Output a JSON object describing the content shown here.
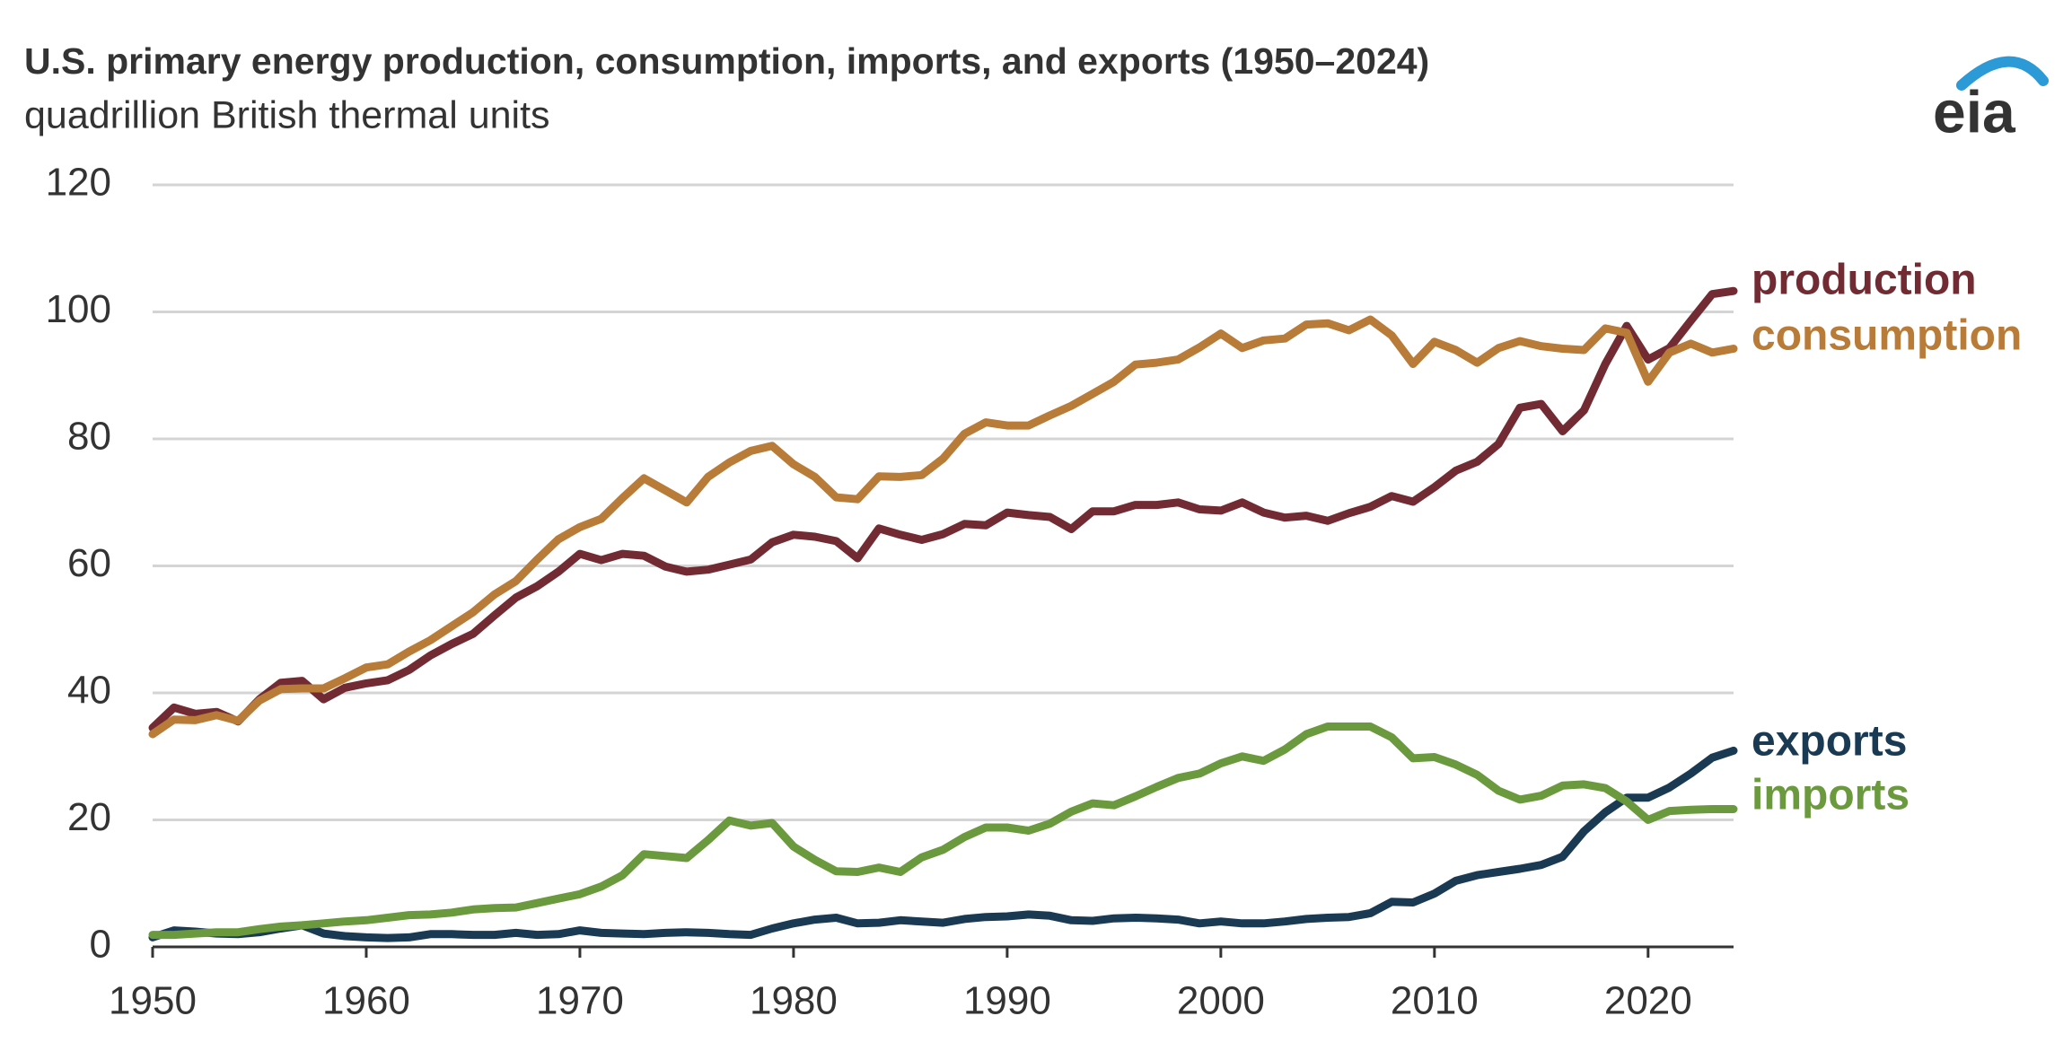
{
  "chart_data": {
    "type": "line",
    "title": "U.S. primary energy production, consumption, imports, and exports (1950–2024)",
    "subtitle": "quadrillion British thermal units",
    "logo": "eia",
    "x": [
      1950,
      1951,
      1952,
      1953,
      1954,
      1955,
      1956,
      1957,
      1958,
      1959,
      1960,
      1961,
      1962,
      1963,
      1964,
      1965,
      1966,
      1967,
      1968,
      1969,
      1970,
      1971,
      1972,
      1973,
      1974,
      1975,
      1976,
      1977,
      1978,
      1979,
      1980,
      1981,
      1982,
      1983,
      1984,
      1985,
      1986,
      1987,
      1988,
      1989,
      1990,
      1991,
      1992,
      1993,
      1994,
      1995,
      1996,
      1997,
      1998,
      1999,
      2000,
      2001,
      2002,
      2003,
      2004,
      2005,
      2006,
      2007,
      2008,
      2009,
      2010,
      2011,
      2012,
      2013,
      2014,
      2015,
      2016,
      2017,
      2018,
      2019,
      2020,
      2021,
      2022,
      2023,
      2024
    ],
    "series": [
      {
        "name": "production",
        "color": "#722b33",
        "values": [
          34.5,
          37.7,
          36.7,
          37.0,
          35.5,
          39.0,
          41.6,
          41.9,
          39.0,
          40.8,
          41.5,
          42.0,
          43.6,
          45.9,
          47.7,
          49.3,
          52.2,
          55.0,
          56.8,
          59.1,
          61.9,
          60.9,
          61.9,
          61.6,
          59.9,
          59.1,
          59.4,
          60.2,
          61.0,
          63.7,
          64.9,
          64.6,
          63.9,
          61.2,
          65.9,
          64.9,
          64.1,
          65.0,
          66.6,
          66.4,
          68.4,
          68.0,
          67.7,
          65.8,
          68.6,
          68.6,
          69.6,
          69.6,
          70.0,
          68.9,
          68.7,
          70.0,
          68.4,
          67.6,
          67.9,
          67.1,
          68.3,
          69.3,
          71.0,
          70.1,
          72.4,
          75.0,
          76.4,
          79.2,
          84.9,
          85.5,
          81.2,
          84.5,
          91.8,
          97.8,
          92.5,
          94.3,
          98.6,
          102.8,
          103.3
        ]
      },
      {
        "name": "consumption",
        "color": "#b87b38",
        "values": [
          33.5,
          35.8,
          35.7,
          36.5,
          35.6,
          38.8,
          40.6,
          40.7,
          40.7,
          42.3,
          44.0,
          44.5,
          46.5,
          48.3,
          50.5,
          52.7,
          55.5,
          57.6,
          61.0,
          64.2,
          66.1,
          67.4,
          70.7,
          73.8,
          71.9,
          70.0,
          74.0,
          76.3,
          78.1,
          78.9,
          76.0,
          74.0,
          70.8,
          70.5,
          74.1,
          74.0,
          74.3,
          76.9,
          80.8,
          82.6,
          82.1,
          82.1,
          83.7,
          85.2,
          87.1,
          89.0,
          91.7,
          92.0,
          92.5,
          94.4,
          96.6,
          94.3,
          95.5,
          95.8,
          98.0,
          98.2,
          97.1,
          98.8,
          96.3,
          91.8,
          95.3,
          94.0,
          92.0,
          94.3,
          95.4,
          94.6,
          94.2,
          94.0,
          97.4,
          96.7,
          89.0,
          93.6,
          95.0,
          93.6,
          94.2
        ]
      },
      {
        "name": "exports",
        "color": "#1a3a54",
        "values": [
          1.5,
          2.6,
          2.4,
          2.1,
          2.0,
          2.3,
          2.9,
          3.4,
          2.1,
          1.7,
          1.5,
          1.4,
          1.5,
          2.0,
          2.0,
          1.9,
          1.9,
          2.2,
          1.9,
          2.0,
          2.6,
          2.2,
          2.1,
          2.0,
          2.2,
          2.3,
          2.2,
          2.0,
          1.9,
          2.9,
          3.7,
          4.3,
          4.6,
          3.7,
          3.8,
          4.2,
          4.0,
          3.8,
          4.4,
          4.7,
          4.8,
          5.1,
          4.9,
          4.2,
          4.1,
          4.5,
          4.6,
          4.5,
          4.3,
          3.7,
          4.0,
          3.7,
          3.7,
          4.0,
          4.4,
          4.6,
          4.7,
          5.3,
          7.1,
          7.0,
          8.4,
          10.4,
          11.3,
          11.8,
          12.3,
          12.9,
          14.2,
          18.2,
          21.2,
          23.5,
          23.5,
          25.1,
          27.3,
          29.8,
          30.9
        ]
      },
      {
        "name": "imports",
        "color": "#6b9a3e",
        "values": [
          1.9,
          1.9,
          2.1,
          2.3,
          2.3,
          2.8,
          3.2,
          3.4,
          3.7,
          4.0,
          4.2,
          4.6,
          5.0,
          5.1,
          5.4,
          5.9,
          6.1,
          6.2,
          6.9,
          7.6,
          8.3,
          9.5,
          11.3,
          14.6,
          14.3,
          14.0,
          16.8,
          19.9,
          19.1,
          19.5,
          15.8,
          13.7,
          11.9,
          11.8,
          12.5,
          11.8,
          14.1,
          15.3,
          17.3,
          18.8,
          18.8,
          18.3,
          19.4,
          21.3,
          22.6,
          22.3,
          23.7,
          25.2,
          26.6,
          27.3,
          28.9,
          30.0,
          29.3,
          31.1,
          33.5,
          34.7,
          34.7,
          34.7,
          33.0,
          29.7,
          29.9,
          28.7,
          27.1,
          24.6,
          23.2,
          23.8,
          25.4,
          25.6,
          25.0,
          22.9,
          20.0,
          21.4,
          21.6,
          21.7,
          21.7
        ]
      }
    ],
    "xlim": [
      1950,
      2024
    ],
    "xticks": [
      1950,
      1960,
      1970,
      1980,
      1990,
      2000,
      2010,
      2020
    ],
    "ylim": [
      0,
      120
    ],
    "yticks": [
      0,
      20,
      40,
      60,
      80,
      100,
      120
    ],
    "grid": true
  }
}
